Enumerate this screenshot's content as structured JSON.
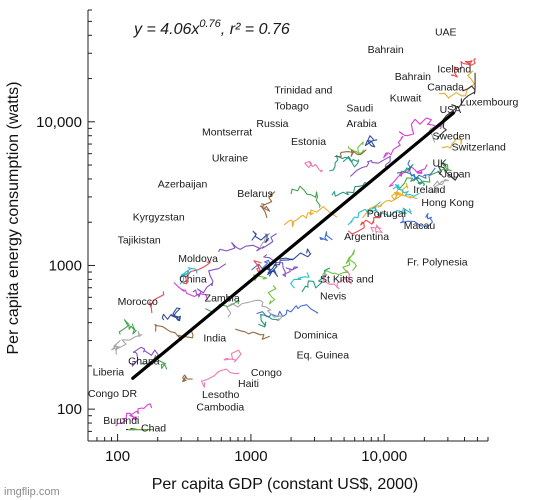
{
  "chart_data": {
    "type": "line",
    "title": "y = 4.06x^0.76, r² = 0.76",
    "equation": {
      "prefix": "y",
      "coef": "= 4.06",
      "var": "x",
      "exp": "0.76",
      "r2": ", r² = 0.76"
    },
    "xlabel": "Per capita GDP (constant US$, 2000)",
    "ylabel": "Per capita energy consumption (watts)",
    "xscale": "log",
    "yscale": "log",
    "xlim": [
      60,
      60000
    ],
    "ylim": [
      60,
      60000
    ],
    "x_ticks": [
      {
        "value": 100,
        "label": "100"
      },
      {
        "value": 1000,
        "label": "1000"
      },
      {
        "value": 10000,
        "label": "10,000"
      }
    ],
    "y_ticks": [
      {
        "value": 100,
        "label": "100"
      },
      {
        "value": 1000,
        "label": "1000"
      },
      {
        "value": 10000,
        "label": "10,000"
      }
    ],
    "grid": false,
    "fit_line": {
      "x": [
        130,
        33000
      ],
      "y": [
        164,
        11500
      ],
      "color": "#000000"
    },
    "labels": [
      {
        "text": "UAE",
        "x": 24000,
        "y": 40000
      },
      {
        "text": "Bahrain",
        "x": 7500,
        "y": 30000
      },
      {
        "text": "Iceland",
        "x": 25000,
        "y": 22000
      },
      {
        "text": "Bahrain",
        "x": 12000,
        "y": 19500
      },
      {
        "text": "Canada",
        "x": 21000,
        "y": 16500
      },
      {
        "text": "Kuwait",
        "x": 11000,
        "y": 13800
      },
      {
        "text": "Trinidad and",
        "x": 1500,
        "y": 15800
      },
      {
        "text": "Tobago",
        "x": 1500,
        "y": 12200
      },
      {
        "text": "Saudi",
        "x": 5200,
        "y": 11800
      },
      {
        "text": "Arabia",
        "x": 5200,
        "y": 9200
      },
      {
        "text": "Luxembourg",
        "x": 37000,
        "y": 13000
      },
      {
        "text": "USA",
        "x": 26000,
        "y": 11500
      },
      {
        "text": "Russia",
        "x": 1100,
        "y": 9200
      },
      {
        "text": "Montserrat",
        "x": 430,
        "y": 8000
      },
      {
        "text": "Estonia",
        "x": 2000,
        "y": 6900
      },
      {
        "text": "Sweden",
        "x": 23000,
        "y": 7500
      },
      {
        "text": "Switzerland",
        "x": 32000,
        "y": 6300
      },
      {
        "text": "Ukraine",
        "x": 510,
        "y": 5300
      },
      {
        "text": "UK",
        "x": 23000,
        "y": 4900
      },
      {
        "text": "Japan",
        "x": 27000,
        "y": 4100
      },
      {
        "text": "Azerbaijan",
        "x": 200,
        "y": 3500
      },
      {
        "text": "Belarus",
        "x": 790,
        "y": 3000
      },
      {
        "text": "Ireland",
        "x": 16500,
        "y": 3200
      },
      {
        "text": "Hong Kong",
        "x": 19000,
        "y": 2600
      },
      {
        "text": "Kyrgyzstan",
        "x": 130,
        "y": 2050
      },
      {
        "text": "Portugal",
        "x": 7400,
        "y": 2180
      },
      {
        "text": "Macau",
        "x": 14000,
        "y": 1800
      },
      {
        "text": "Tajikistan",
        "x": 100,
        "y": 1420
      },
      {
        "text": "Argentina",
        "x": 5000,
        "y": 1500
      },
      {
        "text": "Moldova",
        "x": 285,
        "y": 1060
      },
      {
        "text": "Fr. Polynesia",
        "x": 14800,
        "y": 1000
      },
      {
        "text": "China",
        "x": 290,
        "y": 760
      },
      {
        "text": "St Kitts and",
        "x": 3300,
        "y": 760
      },
      {
        "text": "Nevis",
        "x": 3300,
        "y": 580
      },
      {
        "text": "Zambia",
        "x": 450,
        "y": 560
      },
      {
        "text": "Morocco",
        "x": 100,
        "y": 530
      },
      {
        "text": "India",
        "x": 440,
        "y": 295
      },
      {
        "text": "Dominica",
        "x": 2100,
        "y": 310
      },
      {
        "text": "Ghana",
        "x": 120,
        "y": 205
      },
      {
        "text": "Eq. Guinea",
        "x": 2200,
        "y": 225
      },
      {
        "text": "Liberia",
        "x": 65,
        "y": 172
      },
      {
        "text": "Congo",
        "x": 1000,
        "y": 170
      },
      {
        "text": "Haiti",
        "x": 800,
        "y": 142
      },
      {
        "text": "Congo DR",
        "x": 60,
        "y": 121
      },
      {
        "text": "Lesotho",
        "x": 430,
        "y": 120
      },
      {
        "text": "Cambodia",
        "x": 390,
        "y": 98
      },
      {
        "text": "Burundi",
        "x": 78,
        "y": 79
      },
      {
        "text": "Chad",
        "x": 150,
        "y": 70
      }
    ],
    "series_colors": [
      "#e8343a",
      "#2e9d3a",
      "#2f5fd1",
      "#d42bd0",
      "#e6a51a",
      "#17b9c9",
      "#7a3fbf",
      "#8a5a2b",
      "#0f8f6f",
      "#f06ea8",
      "#a0a0a0",
      "#222222",
      "#5fbf2a",
      "#1a3a8f"
    ]
  },
  "watermark": "imgflip.com"
}
